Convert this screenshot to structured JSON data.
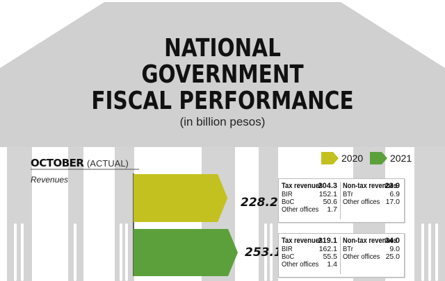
{
  "title_lines": [
    "NATIONAL",
    "GOVERNMENT",
    "FISCAL PERFORMANCE"
  ],
  "subtitle": "(in billion pesos)",
  "period": {
    "main": "OCTOBER",
    "qualifier": "(ACTUAL)"
  },
  "section_label": "Revenues",
  "colors": {
    "2020": "#c3c11f",
    "2021": "#5ca03c",
    "background_building": "#cfcfcf"
  },
  "chart_data": {
    "type": "bar",
    "orientation": "horizontal",
    "categories": [
      "2020",
      "2021"
    ],
    "values": [
      228.2,
      253.1
    ],
    "value_labels": [
      "228.2",
      "253.1"
    ],
    "legend": [
      "2020",
      "2021"
    ],
    "legend_position": "top-right",
    "breakdown": [
      {
        "tax_label": "Tax revenues",
        "tax_value": "204.3",
        "tax_items": [
          {
            "label": "BIR",
            "value": "152.1"
          },
          {
            "label": "BoC",
            "value": "50.6"
          },
          {
            "label": "Other offices",
            "value": "1.7"
          }
        ],
        "nontax_label": "Non-tax revenues",
        "nontax_value": "23.9",
        "nontax_items": [
          {
            "label": "BTr",
            "value": "6.9"
          },
          {
            "label": "Other offices",
            "value": "17.0"
          }
        ]
      },
      {
        "tax_label": "Tax revenues",
        "tax_value": "219.1",
        "tax_items": [
          {
            "label": "BIR",
            "value": "162.1"
          },
          {
            "label": "BoC",
            "value": "55.5"
          },
          {
            "label": "Other offices",
            "value": "1.4"
          }
        ],
        "nontax_label": "Non-tax revenues",
        "nontax_value": "34.0",
        "nontax_items": [
          {
            "label": "BTr",
            "value": "9.0"
          },
          {
            "label": "Other offices",
            "value": "25.0"
          }
        ]
      }
    ]
  }
}
